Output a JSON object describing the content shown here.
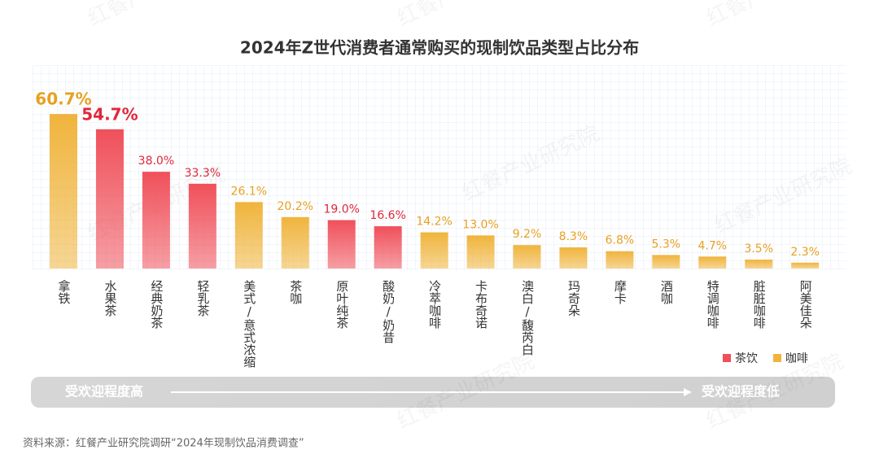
{
  "chart_data": {
    "type": "bar",
    "title": "2024年Z世代消费者通常购买的现制饮品类型占比分布",
    "categories": [
      "拿铁",
      "水果茶",
      "经典奶茶",
      "轻乳茶",
      "美式/意式浓缩",
      "茶咖",
      "原叶纯茶",
      "酸奶/奶昔",
      "冷萃咖啡",
      "卡布奇诺",
      "澳白/馥芮白",
      "玛奇朵",
      "摩卡",
      "酒咖",
      "特调咖啡",
      "脏脏咖啡",
      "阿美佳朵"
    ],
    "series": [
      {
        "name": "茶饮",
        "color": "#f0505a",
        "values": [
          null,
          54.7,
          38.0,
          33.3,
          null,
          null,
          19.0,
          16.6,
          null,
          null,
          null,
          null,
          null,
          null,
          null,
          null,
          null
        ],
        "value_labels": [
          null,
          "54.7%",
          "38.0%",
          "33.3%",
          null,
          null,
          "19.0%",
          "16.6%",
          null,
          null,
          null,
          null,
          null,
          null,
          null,
          null,
          null
        ]
      },
      {
        "name": "咖啡",
        "color": "#f0b43c",
        "values": [
          60.7,
          null,
          null,
          null,
          26.1,
          20.2,
          null,
          null,
          14.2,
          13.0,
          9.2,
          8.3,
          6.8,
          5.3,
          4.7,
          3.5,
          2.3
        ],
        "value_labels": [
          "60.7%",
          null,
          null,
          null,
          "26.1%",
          "20.2%",
          null,
          null,
          "14.2%",
          "13.0%",
          "9.2%",
          "8.3%",
          "6.8%",
          "5.3%",
          "4.7%",
          "3.5%",
          "2.3%"
        ]
      }
    ],
    "ylim": [
      0,
      70
    ],
    "legend": "bottom-right",
    "arrow_start": "受欢迎程度高",
    "arrow_end": "受欢迎程度低",
    "source": "资料来源：红餐产业研究院调研“2024年现制饮品消费调查”",
    "watermark": "红餐产业研究院"
  }
}
